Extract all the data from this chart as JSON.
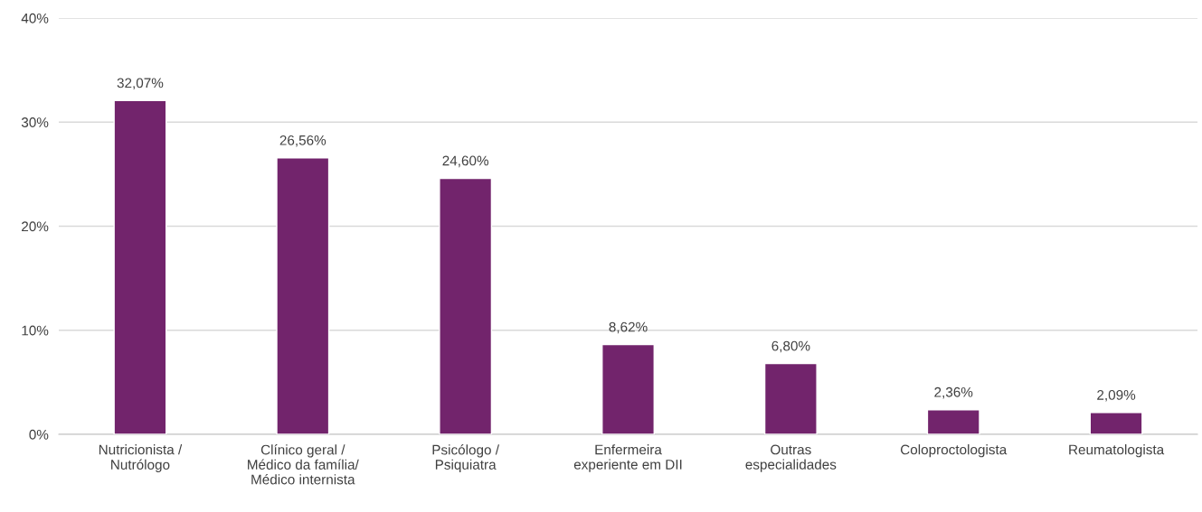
{
  "chart_data": {
    "type": "bar",
    "categories": [
      "Nutricionista /\nNutrólogo",
      "Clínico geral /\nMédico da família/\nMédico internista",
      "Psicólogo /\nPsiquiatra",
      "Enfermeira\nexperiente em DII",
      "Outras\nespecialidades",
      "Coloproctologista",
      "Reumatologista"
    ],
    "values": [
      32.07,
      26.56,
      24.6,
      8.62,
      6.8,
      2.36,
      2.09
    ],
    "value_labels": [
      "32,07%",
      "26,56%",
      "24,60%",
      "8,62%",
      "6,80%",
      "2,36%",
      "2,09%"
    ],
    "color": "#72246c",
    "ylim": [
      0,
      40
    ],
    "yticks": [
      {
        "value": 0,
        "label": "0%"
      },
      {
        "value": 10,
        "label": "10%"
      },
      {
        "value": 20,
        "label": "20%"
      },
      {
        "value": 30,
        "label": "30%"
      },
      {
        "value": 40,
        "label": "40%"
      }
    ],
    "grid": "y"
  }
}
